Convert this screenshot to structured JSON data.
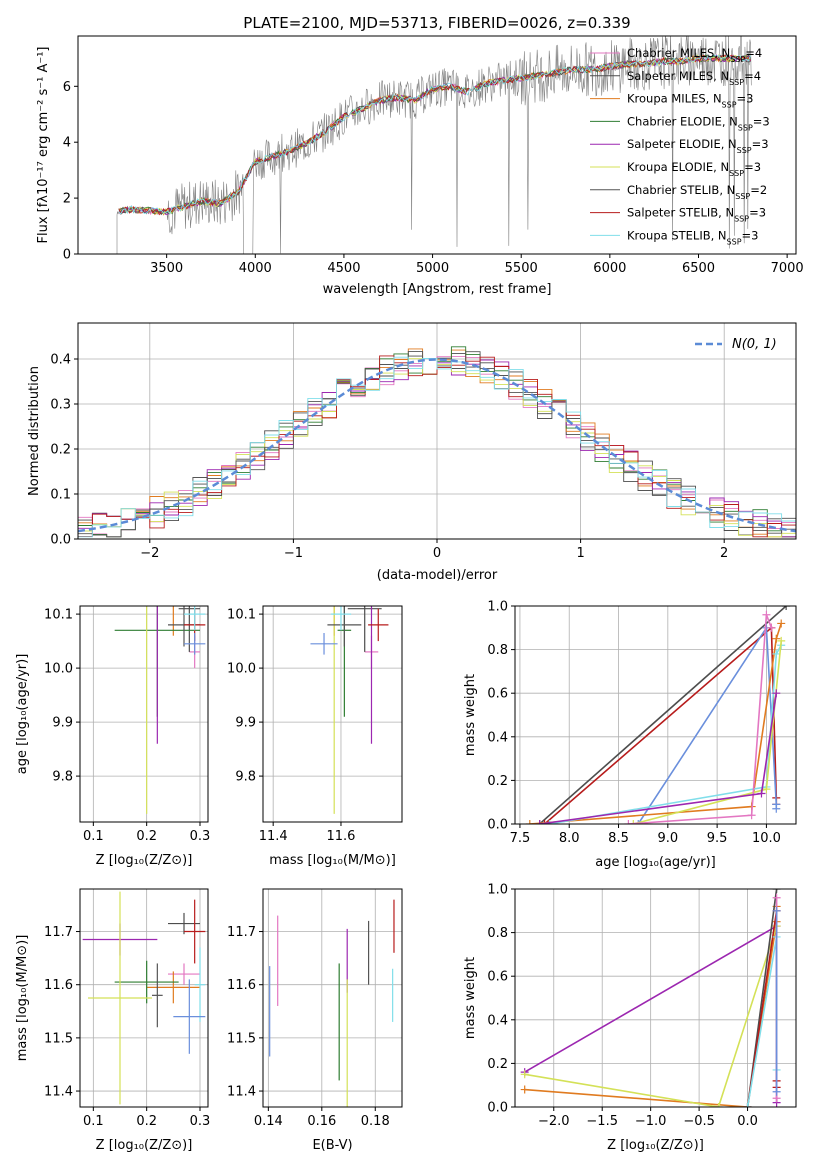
{
  "title": "PLATE=2100, MJD=53713, FIBERID=0026, z=0.339",
  "colors": {
    "chabrier_miles": "#e377c2",
    "salpeter_miles": "#4d4d4d",
    "kroupa_miles": "#e07b20",
    "chabrier_elodie": "#2f7d32",
    "salpeter_elodie": "#9c27b0",
    "kroupa_elodie": "#d4e157",
    "chabrier_stelib": "#555555",
    "salpeter_stelib": "#b71c1c",
    "kroupa_stelib": "#80deea",
    "spectrum": "#808080",
    "gaussian": "#5b8bd6",
    "blue_extra": "#6a8fdc"
  },
  "legend": [
    {
      "text": "Chabrier MILES, N",
      "sub": "SSP",
      "tail": "=4",
      "color_key": "chabrier_miles"
    },
    {
      "text": "Salpeter MILES, N",
      "sub": "SSP",
      "tail": "=4",
      "color_key": "salpeter_miles"
    },
    {
      "text": "Kroupa MILES, N",
      "sub": "SSP",
      "tail": "=3",
      "color_key": "kroupa_miles"
    },
    {
      "text": "Chabrier ELODIE, N",
      "sub": "SSP",
      "tail": "=3",
      "color_key": "chabrier_elodie"
    },
    {
      "text": "Salpeter ELODIE, N",
      "sub": "SSP",
      "tail": "=3",
      "color_key": "salpeter_elodie"
    },
    {
      "text": "Kroupa ELODIE, N",
      "sub": "SSP",
      "tail": "=3",
      "color_key": "kroupa_elodie"
    },
    {
      "text": "Chabrier STELIB, N",
      "sub": "SSP",
      "tail": "=2",
      "color_key": "chabrier_stelib"
    },
    {
      "text": "Salpeter STELIB, N",
      "sub": "SSP",
      "tail": "=3",
      "color_key": "salpeter_stelib"
    },
    {
      "text": "Kroupa STELIB, N",
      "sub": "SSP",
      "tail": "=3",
      "color_key": "kroupa_stelib"
    }
  ],
  "chart_data": [
    {
      "id": "spectrum",
      "type": "line",
      "xlabel": "wavelength [Angstrom, rest frame]",
      "ylabel": "Flux [fλ10⁻¹⁷ erg cm⁻² s⁻¹ A⁻¹]",
      "xlim": [
        3000,
        7050
      ],
      "ylim": [
        0,
        7.8
      ],
      "xticks": [
        3500,
        4000,
        4500,
        5000,
        5500,
        6000,
        6500,
        7000
      ],
      "yticks": [
        0,
        2,
        4,
        6
      ],
      "x": [
        3220,
        3300,
        3400,
        3500,
        3600,
        3700,
        3800,
        3900,
        4000,
        4100,
        4200,
        4300,
        4400,
        4500,
        4600,
        4700,
        4800,
        4900,
        5000,
        5100,
        5200,
        5300,
        5400,
        5500,
        5600,
        5700,
        5800,
        5900,
        6000,
        6100,
        6200,
        6300,
        6400,
        6500,
        6600,
        6700,
        6800
      ],
      "flux": [
        1.5,
        1.6,
        1.55,
        1.5,
        1.7,
        1.9,
        1.8,
        2.2,
        3.3,
        3.5,
        3.7,
        4.0,
        4.4,
        4.9,
        5.2,
        5.5,
        5.6,
        5.5,
        5.9,
        6.0,
        5.8,
        6.1,
        6.2,
        6.3,
        6.4,
        6.5,
        6.6,
        6.6,
        6.7,
        6.8,
        6.8,
        6.9,
        6.9,
        7.0,
        7.0,
        7.0,
        7.0
      ]
    },
    {
      "id": "residuals",
      "type": "histogram",
      "xlabel": "(data-model)/error",
      "ylabel": "Normed distribution",
      "xlim": [
        -2.5,
        2.5
      ],
      "ylim": [
        0,
        0.48
      ],
      "xticks": [
        -2,
        -1,
        0,
        1,
        2
      ],
      "yticks": [
        0.0,
        0.1,
        0.2,
        0.3,
        0.4
      ],
      "gaussian_label": "N(0, 1)",
      "bin_width": 0.1
    },
    {
      "id": "age_vs_Z",
      "type": "errorbar",
      "xlabel": "Z [log₁₀(Z/Z⊙)]",
      "ylabel": "age  [log₁₀(age/yr)]",
      "xlim": [
        0.075,
        0.315
      ],
      "ylim": [
        9.715,
        10.115
      ],
      "xticks": [
        0.1,
        0.2,
        0.3
      ],
      "yticks": [
        9.8,
        9.9,
        10.0,
        10.1
      ],
      "points": [
        {
          "c": "chabrier_miles",
          "x": 0.29,
          "y": 10.03,
          "xe": 0.01,
          "ye": 0.03
        },
        {
          "c": "salpeter_miles",
          "x": 0.28,
          "y": 10.11,
          "xe": 0.02,
          "ye": 0.08
        },
        {
          "c": "kroupa_miles",
          "x": 0.25,
          "y": 10.12,
          "xe": 0.05,
          "ye": 0.06
        },
        {
          "c": "chabrier_elodie",
          "x": 0.22,
          "y": 10.07,
          "xe": 0.08,
          "ye": 0.16
        },
        {
          "c": "salpeter_elodie",
          "x": 0.22,
          "y": 10.15,
          "xe": 0.14,
          "ye": 0.29
        },
        {
          "c": "kroupa_elodie",
          "x": 0.2,
          "y": 10.15,
          "xe": 0.11,
          "ye": 0.42
        },
        {
          "c": "chabrier_stelib",
          "x": 0.27,
          "y": 10.08,
          "xe": 0.03,
          "ye": 0.04
        },
        {
          "c": "salpeter_stelib",
          "x": 0.29,
          "y": 10.08,
          "xe": 0.02,
          "ye": 0.03
        },
        {
          "c": "kroupa_stelib",
          "x": 0.29,
          "y": 10.1,
          "xe": 0.02,
          "ye": 0.03
        },
        {
          "c": "blue_extra",
          "x": 0.29,
          "y": 10.045,
          "xe": 0.02,
          "ye": 0.02
        }
      ]
    },
    {
      "id": "age_vs_mass",
      "type": "errorbar",
      "xlabel": "mass [log₁₀(M/M⊙)]",
      "ylabel": "",
      "xlim": [
        11.37,
        11.78
      ],
      "ylim": [
        9.715,
        10.115
      ],
      "xticks": [
        11.4,
        11.6
      ],
      "yticks": [
        9.8,
        9.9,
        10.0,
        10.1
      ],
      "points": [
        {
          "c": "chabrier_miles",
          "x": 11.69,
          "y": 10.03,
          "xe": 0.02,
          "ye": 0.03
        },
        {
          "c": "salpeter_miles",
          "x": 11.67,
          "y": 10.11,
          "xe": 0.05,
          "ye": 0.08
        },
        {
          "c": "kroupa_miles",
          "x": 11.58,
          "y": 10.12,
          "xe": 0.04,
          "ye": 0.06
        },
        {
          "c": "chabrier_elodie",
          "x": 11.61,
          "y": 10.07,
          "xe": 0.02,
          "ye": 0.16
        },
        {
          "c": "salpeter_elodie",
          "x": 11.69,
          "y": 10.15,
          "xe": 0.04,
          "ye": 0.29
        },
        {
          "c": "kroupa_elodie",
          "x": 11.58,
          "y": 10.15,
          "xe": 0.1,
          "ye": 0.42
        },
        {
          "c": "chabrier_stelib",
          "x": 11.61,
          "y": 10.08,
          "xe": 0.05,
          "ye": 0.04
        },
        {
          "c": "salpeter_stelib",
          "x": 11.71,
          "y": 10.08,
          "xe": 0.03,
          "ye": 0.03
        },
        {
          "c": "kroupa_stelib",
          "x": 11.6,
          "y": 10.1,
          "xe": 0.03,
          "ye": 0.03
        },
        {
          "c": "blue_extra",
          "x": 11.55,
          "y": 10.045,
          "xe": 0.04,
          "ye": 0.02
        }
      ]
    },
    {
      "id": "weight_vs_age",
      "type": "line",
      "xlabel": "age  [log₁₀(age/yr)]",
      "ylabel": "mass weight",
      "xlim": [
        7.45,
        10.3
      ],
      "ylim": [
        0,
        1
      ],
      "xticks": [
        7.5,
        8.0,
        8.5,
        9.0,
        9.5,
        10.0
      ],
      "yticks": [
        0.0,
        0.2,
        0.4,
        0.6,
        0.8,
        1.0
      ],
      "series": [
        {
          "c": "salpeter_miles",
          "x": [
            7.7,
            10.2
          ],
          "y": [
            0.0,
            1.0
          ]
        },
        {
          "c": "salpeter_stelib",
          "x": [
            7.75,
            10.05,
            10.1,
            10.1
          ],
          "y": [
            0.0,
            0.9,
            0.12,
            0.09
          ]
        },
        {
          "c": "blue_extra",
          "x": [
            8.7,
            10.0,
            10.1,
            10.1
          ],
          "y": [
            0.0,
            0.9,
            0.09,
            0.07
          ]
        },
        {
          "c": "kroupa_miles",
          "x": [
            7.6,
            9.85,
            10.1,
            10.15
          ],
          "y": [
            0.0,
            0.08,
            0.85,
            0.92
          ]
        },
        {
          "c": "kroupa_stelib",
          "x": [
            7.8,
            10.0,
            10.1,
            10.15
          ],
          "y": [
            0.0,
            0.17,
            0.78,
            0.82
          ]
        },
        {
          "c": "kroupa_elodie",
          "x": [
            8.65,
            10.0,
            10.15
          ],
          "y": [
            0.0,
            0.16,
            0.84
          ]
        },
        {
          "c": "chabrier_miles",
          "x": [
            8.6,
            9.85,
            10.0,
            10.05
          ],
          "y": [
            0.0,
            0.04,
            0.96,
            0.9
          ]
        },
        {
          "c": "salpeter_elodie",
          "x": [
            7.7,
            9.95,
            10.1
          ],
          "y": [
            0.0,
            0.14,
            0.6
          ]
        }
      ]
    },
    {
      "id": "mass_vs_Z",
      "type": "errorbar",
      "xlabel": "Z [log₁₀(Z/Z⊙)]",
      "ylabel": "mass [log₁₀(M/M⊙)]",
      "xlim": [
        0.075,
        0.315
      ],
      "ylim": [
        11.37,
        11.78
      ],
      "xticks": [
        0.1,
        0.2,
        0.3
      ],
      "yticks": [
        11.4,
        11.5,
        11.6,
        11.7
      ],
      "points": [
        {
          "c": "chabrier_miles",
          "x": 0.27,
          "y": 11.62,
          "xe": 0.03,
          "ye": 0.02
        },
        {
          "c": "salpeter_miles",
          "x": 0.27,
          "y": 11.715,
          "xe": 0.03,
          "ye": 0.02
        },
        {
          "c": "kroupa_miles",
          "x": 0.25,
          "y": 11.595,
          "xe": 0.05,
          "ye": 0.03
        },
        {
          "c": "chabrier_elodie",
          "x": 0.2,
          "y": 11.605,
          "xe": 0.06,
          "ye": 0.04
        },
        {
          "c": "salpeter_elodie",
          "x": 0.15,
          "y": 11.685,
          "xe": 0.07,
          "ye": 0.03
        },
        {
          "c": "kroupa_elodie",
          "x": 0.15,
          "y": 11.575,
          "xe": 0.06,
          "ye": 0.2
        },
        {
          "c": "chabrier_stelib",
          "x": 0.22,
          "y": 11.58,
          "xe": 0.01,
          "ye": 0.06
        },
        {
          "c": "salpeter_stelib",
          "x": 0.29,
          "y": 11.7,
          "xe": 0.02,
          "ye": 0.06
        },
        {
          "c": "kroupa_stelib",
          "x": 0.3,
          "y": 11.6,
          "xe": 0.01,
          "ye": 0.07
        },
        {
          "c": "blue_extra",
          "x": 0.28,
          "y": 11.54,
          "xe": 0.03,
          "ye": 0.07
        }
      ]
    },
    {
      "id": "mass_vs_ebv",
      "type": "errorbar",
      "xlabel": "E(B-V)",
      "ylabel": "",
      "xlim": [
        0.138,
        0.19
      ],
      "ylim": [
        11.37,
        11.78
      ],
      "xticks": [
        0.14,
        0.16,
        0.18
      ],
      "yticks": [
        11.4,
        11.5,
        11.6,
        11.7
      ],
      "points": [
        {
          "c": "chabrier_miles",
          "x": 0.1435,
          "y": 11.645,
          "xe": 0,
          "ye": 0.085
        },
        {
          "c": "blue_extra",
          "x": 0.1405,
          "y": 11.55,
          "xe": 0,
          "ye": 0.085
        },
        {
          "c": "chabrier_elodie",
          "x": 0.1665,
          "y": 11.53,
          "xe": 0,
          "ye": 0.11
        },
        {
          "c": "salpeter_elodie",
          "x": 0.1695,
          "y": 11.645,
          "xe": 0,
          "ye": 0.06
        },
        {
          "c": "kroupa_elodie",
          "x": 0.1695,
          "y": 11.49,
          "xe": 0,
          "ye": 0.12
        },
        {
          "c": "chabrier_stelib",
          "x": 0.1775,
          "y": 11.66,
          "xe": 0,
          "ye": 0.06
        },
        {
          "c": "salpeter_stelib",
          "x": 0.187,
          "y": 11.71,
          "xe": 0,
          "ye": 0.05
        },
        {
          "c": "kroupa_stelib",
          "x": 0.1865,
          "y": 11.58,
          "xe": 0,
          "ye": 0.05
        }
      ]
    },
    {
      "id": "weight_vs_Z",
      "type": "line",
      "xlabel": "Z [log₁₀(Z/Z⊙)]",
      "ylabel": "mass weight",
      "xlim": [
        -2.4,
        0.5
      ],
      "ylim": [
        0,
        1
      ],
      "xticks": [
        -2.0,
        -1.5,
        -1.0,
        -0.5,
        0.0
      ],
      "yticks": [
        0.0,
        0.2,
        0.4,
        0.6,
        0.8,
        1.0
      ],
      "series": [
        {
          "c": "salpeter_elodie",
          "x": [
            -2.3,
            0.3,
            0.3
          ],
          "y": [
            0.16,
            0.83,
            0.02
          ]
        },
        {
          "c": "kroupa_miles",
          "x": [
            -2.3,
            0.0,
            0.3,
            0.3
          ],
          "y": [
            0.08,
            0.0,
            0.85,
            0.92
          ]
        },
        {
          "c": "kroupa_elodie",
          "x": [
            -2.3,
            -0.3,
            0.3
          ],
          "y": [
            0.15,
            0.0,
            0.83
          ]
        },
        {
          "c": "salpeter_miles",
          "x": [
            0.0,
            0.3
          ],
          "y": [
            0.0,
            1.0
          ]
        },
        {
          "c": "salpeter_stelib",
          "x": [
            0.0,
            0.3,
            0.3,
            0.3
          ],
          "y": [
            0.0,
            0.9,
            0.12,
            0.09
          ]
        },
        {
          "c": "kroupa_stelib",
          "x": [
            0.0,
            0.3,
            0.3
          ],
          "y": [
            0.0,
            0.78,
            0.17
          ]
        },
        {
          "c": "chabrier_miles",
          "x": [
            0.3,
            0.3
          ],
          "y": [
            0.96,
            0.04
          ]
        },
        {
          "c": "blue_extra",
          "x": [
            0.3,
            0.3
          ],
          "y": [
            0.9,
            0.07
          ]
        }
      ]
    }
  ]
}
